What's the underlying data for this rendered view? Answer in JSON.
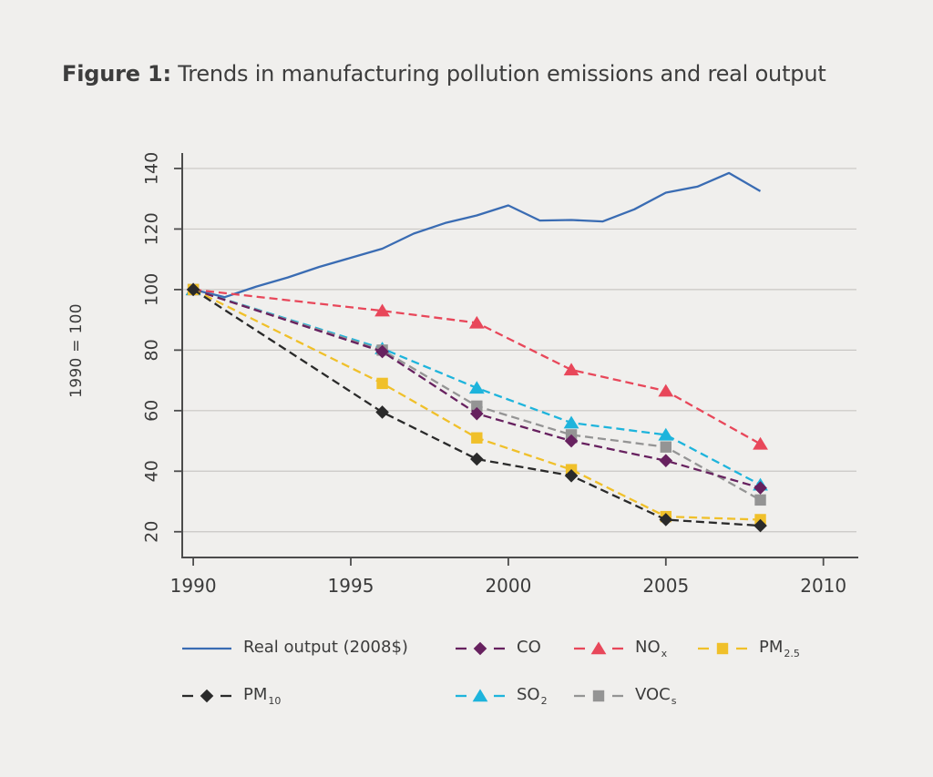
{
  "page": {
    "background": "#f0efed",
    "text_color": "#3b3b3b"
  },
  "title": {
    "prefix": "Figure 1:",
    "text": " Trends in manufacturing pollution emissions and real output"
  },
  "chart_data": {
    "type": "line",
    "title": "",
    "xlabel": "",
    "ylabel": "1990 = 100",
    "grid": true,
    "grid_color": "#c9c7c4",
    "axis_color": "#4c4c4c",
    "xlim": [
      1989.65,
      2011.05
    ],
    "ylim": [
      11.5,
      144.5
    ],
    "x_ticks": [
      1990,
      1995,
      2000,
      2005,
      2010
    ],
    "y_ticks": [
      20,
      40,
      60,
      80,
      100,
      120,
      140
    ],
    "legend_position": "bottom",
    "series": [
      {
        "id": "real-output",
        "name": "Real output (2008$)",
        "color": "#3a6cb3",
        "dash": false,
        "marker": "none",
        "x": [
          1990,
          1991,
          1992,
          1993,
          1994,
          1995,
          1996,
          1997,
          1998,
          1999,
          2000,
          2001,
          2002,
          2003,
          2004,
          2005,
          2006,
          2007,
          2008
        ],
        "values": [
          100,
          97.5,
          101,
          104,
          107.5,
          110.5,
          113.5,
          118.5,
          122,
          124.5,
          127.8,
          122.8,
          123,
          122.5,
          126.5,
          132,
          134,
          138.5,
          132.5
        ]
      },
      {
        "id": "nox",
        "name": "NOx",
        "color": "#e8475a",
        "dash": true,
        "marker": "triangle",
        "x": [
          1990,
          1996,
          1999,
          2002,
          2005,
          2008
        ],
        "values": [
          100,
          93,
          89,
          73.5,
          66.5,
          49
        ]
      },
      {
        "id": "so2",
        "name": "SO2",
        "color": "#1eb4dc",
        "dash": true,
        "marker": "triangle",
        "x": [
          1990,
          1996,
          1999,
          2002,
          2005,
          2008
        ],
        "values": [
          100,
          80.5,
          67.5,
          56,
          52,
          35.5
        ]
      },
      {
        "id": "vocs",
        "name": "VOCs",
        "color": "#949494",
        "dash": true,
        "marker": "square",
        "x": [
          1990,
          1996,
          1999,
          2002,
          2005,
          2008
        ],
        "values": [
          100,
          80,
          61.5,
          52,
          48,
          30.5
        ]
      },
      {
        "id": "co",
        "name": "CO",
        "color": "#67215f",
        "dash": true,
        "marker": "diamond",
        "x": [
          1990,
          1996,
          1999,
          2002,
          2005,
          2008
        ],
        "values": [
          100,
          79.5,
          59,
          50,
          43.5,
          34.5
        ]
      },
      {
        "id": "pm25",
        "name": "PM2.5",
        "color": "#f0c02a",
        "dash": true,
        "marker": "square",
        "x": [
          1990,
          1996,
          1999,
          2002,
          2005,
          2008
        ],
        "values": [
          100,
          69,
          51,
          40.5,
          25,
          24
        ]
      },
      {
        "id": "pm10",
        "name": "PM10",
        "color": "#2a2a2a",
        "dash": true,
        "marker": "diamond",
        "x": [
          1990,
          1996,
          1999,
          2002,
          2005,
          2008
        ],
        "values": [
          100,
          59.5,
          44,
          38.5,
          24,
          22
        ]
      }
    ]
  },
  "legend": {
    "items": [
      {
        "series_id": "real-output",
        "main": "Real output (2008$)",
        "sub": ""
      },
      {
        "series_id": "co",
        "main": "CO",
        "sub": ""
      },
      {
        "series_id": "nox",
        "main": "NO",
        "sub": "x"
      },
      {
        "series_id": "pm25",
        "main": "PM",
        "sub": "2.5"
      },
      {
        "series_id": "pm10",
        "main": "PM",
        "sub": "10"
      },
      {
        "series_id": "so2",
        "main": "SO",
        "sub": "2"
      },
      {
        "series_id": "vocs",
        "main": "VOC",
        "sub": "s"
      }
    ]
  }
}
